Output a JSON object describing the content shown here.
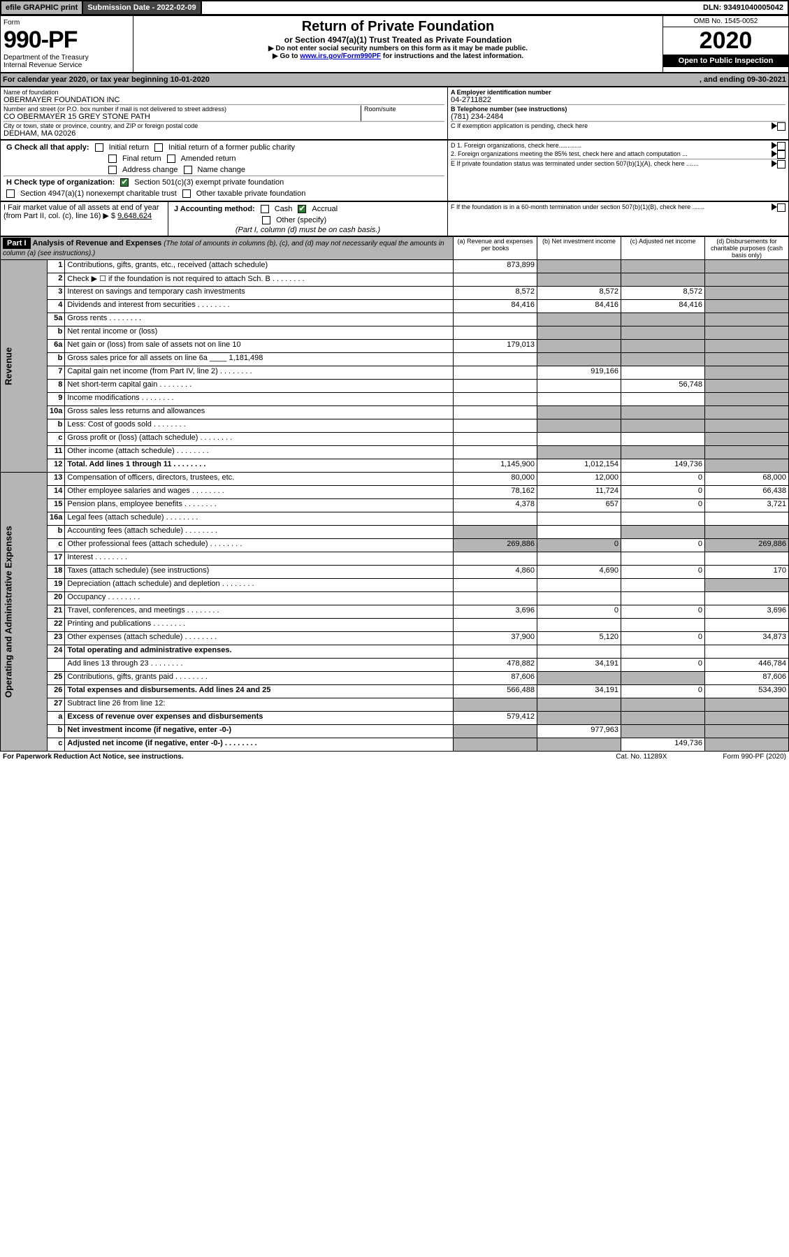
{
  "topbar": {
    "efile": "efile GRAPHIC print",
    "sub": "Submission Date - 2022-02-09",
    "dln": "DLN: 93491040005042"
  },
  "hdr": {
    "form": "Form",
    "no": "990-PF",
    "dept": "Department of the Treasury",
    "irs": "Internal Revenue Service",
    "title": "Return of Private Foundation",
    "sub": "or Section 4947(a)(1) Trust Treated as Private Foundation",
    "note1": "▶ Do not enter social security numbers on this form as it may be made public.",
    "note2a": "▶ Go to ",
    "note2link": "www.irs.gov/Form990PF",
    "note2b": " for instructions and the latest information.",
    "omb": "OMB No. 1545-0052",
    "year": "2020",
    "open": "Open to Public Inspection"
  },
  "cal": {
    "a": "For calendar year 2020, or tax year beginning 10-01-2020",
    "b": ", and ending 09-30-2021"
  },
  "id": {
    "nameLbl": "Name of foundation",
    "name": "OBERMAYER FOUNDATION INC",
    "addrLbl": "Number and street (or P.O. box number if mail is not delivered to street address)",
    "addr": "CO OBERMAYER 15 GREY STONE PATH",
    "roomLbl": "Room/suite",
    "cityLbl": "City or town, state or province, country, and ZIP or foreign postal code",
    "city": "DEDHAM, MA  02026",
    "einLbl": "A Employer identification number",
    "ein": "04-2711822",
    "telLbl": "B Telephone number (see instructions)",
    "tel": "(781) 234-2484",
    "cLbl": "C If exemption application is pending, check here",
    "d1": "D 1. Foreign organizations, check here.............",
    "d2": "2. Foreign organizations meeting the 85% test, check here and attach computation ...",
    "e": "E  If private foundation status was terminated under section 507(b)(1)(A), check here .......",
    "f": "F  If the foundation is in a 60-month termination under section 507(b)(1)(B), check here ......."
  },
  "g": {
    "lbl": "G Check all that apply:",
    "o": [
      "Initial return",
      "Initial return of a former public charity",
      "Final return",
      "Amended return",
      "Address change",
      "Name change"
    ]
  },
  "h": {
    "lbl": "H Check type of organization:",
    "o1": "Section 501(c)(3) exempt private foundation",
    "o2": "Section 4947(a)(1) nonexempt charitable trust",
    "o3": "Other taxable private foundation"
  },
  "i": {
    "lbl": "I Fair market value of all assets at end of year (from Part II, col. (c), line 16) ▶ $",
    "val": "9,648,624"
  },
  "j": {
    "lbl": "J Accounting method:",
    "o1": "Cash",
    "o2": "Accrual",
    "o3": "Other (specify)",
    "note": "(Part I, column (d) must be on cash basis.)"
  },
  "p1": {
    "part": "Part I",
    "title": "Analysis of Revenue and Expenses",
    "note": "(The total of amounts in columns (b), (c), and (d) may not necessarily equal the amounts in column (a) (see instructions).)",
    "cols": {
      "a": "(a)   Revenue and expenses per books",
      "b": "(b)   Net investment income",
      "c": "(c)   Adjusted net income",
      "d": "(d)   Disbursements for charitable purposes (cash basis only)"
    }
  },
  "sidebar": {
    "rev": "Revenue",
    "exp": "Operating and Administrative Expenses"
  },
  "rows": [
    {
      "n": "1",
      "t": "Contributions, gifts, grants, etc., received (attach schedule)",
      "a": "873,899"
    },
    {
      "n": "2",
      "t": "Check ▶ ☐ if the foundation is not required to attach Sch. B",
      "dots": 1
    },
    {
      "n": "3",
      "t": "Interest on savings and temporary cash investments",
      "a": "8,572",
      "b": "8,572",
      "c": "8,572"
    },
    {
      "n": "4",
      "t": "Dividends and interest from securities",
      "dots": 1,
      "a": "84,416",
      "b": "84,416",
      "c": "84,416"
    },
    {
      "n": "5a",
      "t": "Gross rents",
      "dots": 1
    },
    {
      "n": "b",
      "t": "Net rental income or (loss)"
    },
    {
      "n": "6a",
      "t": "Net gain or (loss) from sale of assets not on line 10",
      "a": "179,013"
    },
    {
      "n": "b",
      "t": "Gross sales price for all assets on line 6a",
      "inset": "1,181,498"
    },
    {
      "n": "7",
      "t": "Capital gain net income (from Part IV, line 2)",
      "dots": 1,
      "b": "919,166"
    },
    {
      "n": "8",
      "t": "Net short-term capital gain",
      "dots": 1,
      "c": "56,748"
    },
    {
      "n": "9",
      "t": "Income modifications",
      "dots": 1
    },
    {
      "n": "10a",
      "t": "Gross sales less returns and allowances"
    },
    {
      "n": "b",
      "t": "Less: Cost of goods sold",
      "dots": 1
    },
    {
      "n": "c",
      "t": "Gross profit or (loss) (attach schedule)",
      "dots": 1
    },
    {
      "n": "11",
      "t": "Other income (attach schedule)",
      "dots": 1
    },
    {
      "n": "12",
      "t": "Total. Add lines 1 through 11",
      "dots": 1,
      "bold": 1,
      "a": "1,145,900",
      "b": "1,012,154",
      "c": "149,736"
    }
  ],
  "rows2": [
    {
      "n": "13",
      "t": "Compensation of officers, directors, trustees, etc.",
      "a": "80,000",
      "b": "12,000",
      "c": "0",
      "d": "68,000"
    },
    {
      "n": "14",
      "t": "Other employee salaries and wages",
      "dots": 1,
      "a": "78,162",
      "b": "11,724",
      "c": "0",
      "d": "66,438"
    },
    {
      "n": "15",
      "t": "Pension plans, employee benefits",
      "dots": 1,
      "a": "4,378",
      "b": "657",
      "c": "0",
      "d": "3,721"
    },
    {
      "n": "16a",
      "t": "Legal fees (attach schedule)",
      "dots": 1
    },
    {
      "n": "b",
      "t": "Accounting fees (attach schedule)",
      "dots": 1
    },
    {
      "n": "c",
      "t": "Other professional fees (attach schedule)",
      "dots": 1,
      "a": "269,886",
      "b": "0",
      "c": "0",
      "d": "269,886"
    },
    {
      "n": "17",
      "t": "Interest",
      "dots": 1
    },
    {
      "n": "18",
      "t": "Taxes (attach schedule) (see instructions)",
      "a": "4,860",
      "b": "4,690",
      "c": "0",
      "d": "170"
    },
    {
      "n": "19",
      "t": "Depreciation (attach schedule) and depletion",
      "dots": 1
    },
    {
      "n": "20",
      "t": "Occupancy",
      "dots": 1
    },
    {
      "n": "21",
      "t": "Travel, conferences, and meetings",
      "dots": 1,
      "a": "3,696",
      "b": "0",
      "c": "0",
      "d": "3,696"
    },
    {
      "n": "22",
      "t": "Printing and publications",
      "dots": 1
    },
    {
      "n": "23",
      "t": "Other expenses (attach schedule)",
      "dots": 1,
      "a": "37,900",
      "b": "5,120",
      "c": "0",
      "d": "34,873"
    },
    {
      "n": "24",
      "t": "Total operating and administrative expenses.",
      "bold": 1
    },
    {
      "n": "",
      "t": "Add lines 13 through 23",
      "dots": 1,
      "a": "478,882",
      "b": "34,191",
      "c": "0",
      "d": "446,784"
    },
    {
      "n": "25",
      "t": "Contributions, gifts, grants paid",
      "dots": 1,
      "a": "87,606",
      "d": "87,606"
    },
    {
      "n": "26",
      "t": "Total expenses and disbursements. Add lines 24 and 25",
      "bold": 1,
      "a": "566,488",
      "b": "34,191",
      "c": "0",
      "d": "534,390"
    },
    {
      "n": "27",
      "t": "Subtract line 26 from line 12:"
    },
    {
      "n": "a",
      "t": "Excess of revenue over expenses and disbursements",
      "bold": 1,
      "a": "579,412"
    },
    {
      "n": "b",
      "t": "Net investment income (if negative, enter -0-)",
      "bold": 1,
      "b": "977,963"
    },
    {
      "n": "c",
      "t": "Adjusted net income (if negative, enter -0-)",
      "bold": 1,
      "dots": 1,
      "c": "149,736"
    }
  ],
  "footer": {
    "a": "For Paperwork Reduction Act Notice, see instructions.",
    "b": "Cat. No. 11289X",
    "c": "Form 990-PF (2020)"
  },
  "colors": {
    "shade": "#b5b5b5",
    "link": "#0000cc"
  },
  "colwidths": {
    "a": 120,
    "b": 120,
    "c": 120,
    "d": 120
  }
}
